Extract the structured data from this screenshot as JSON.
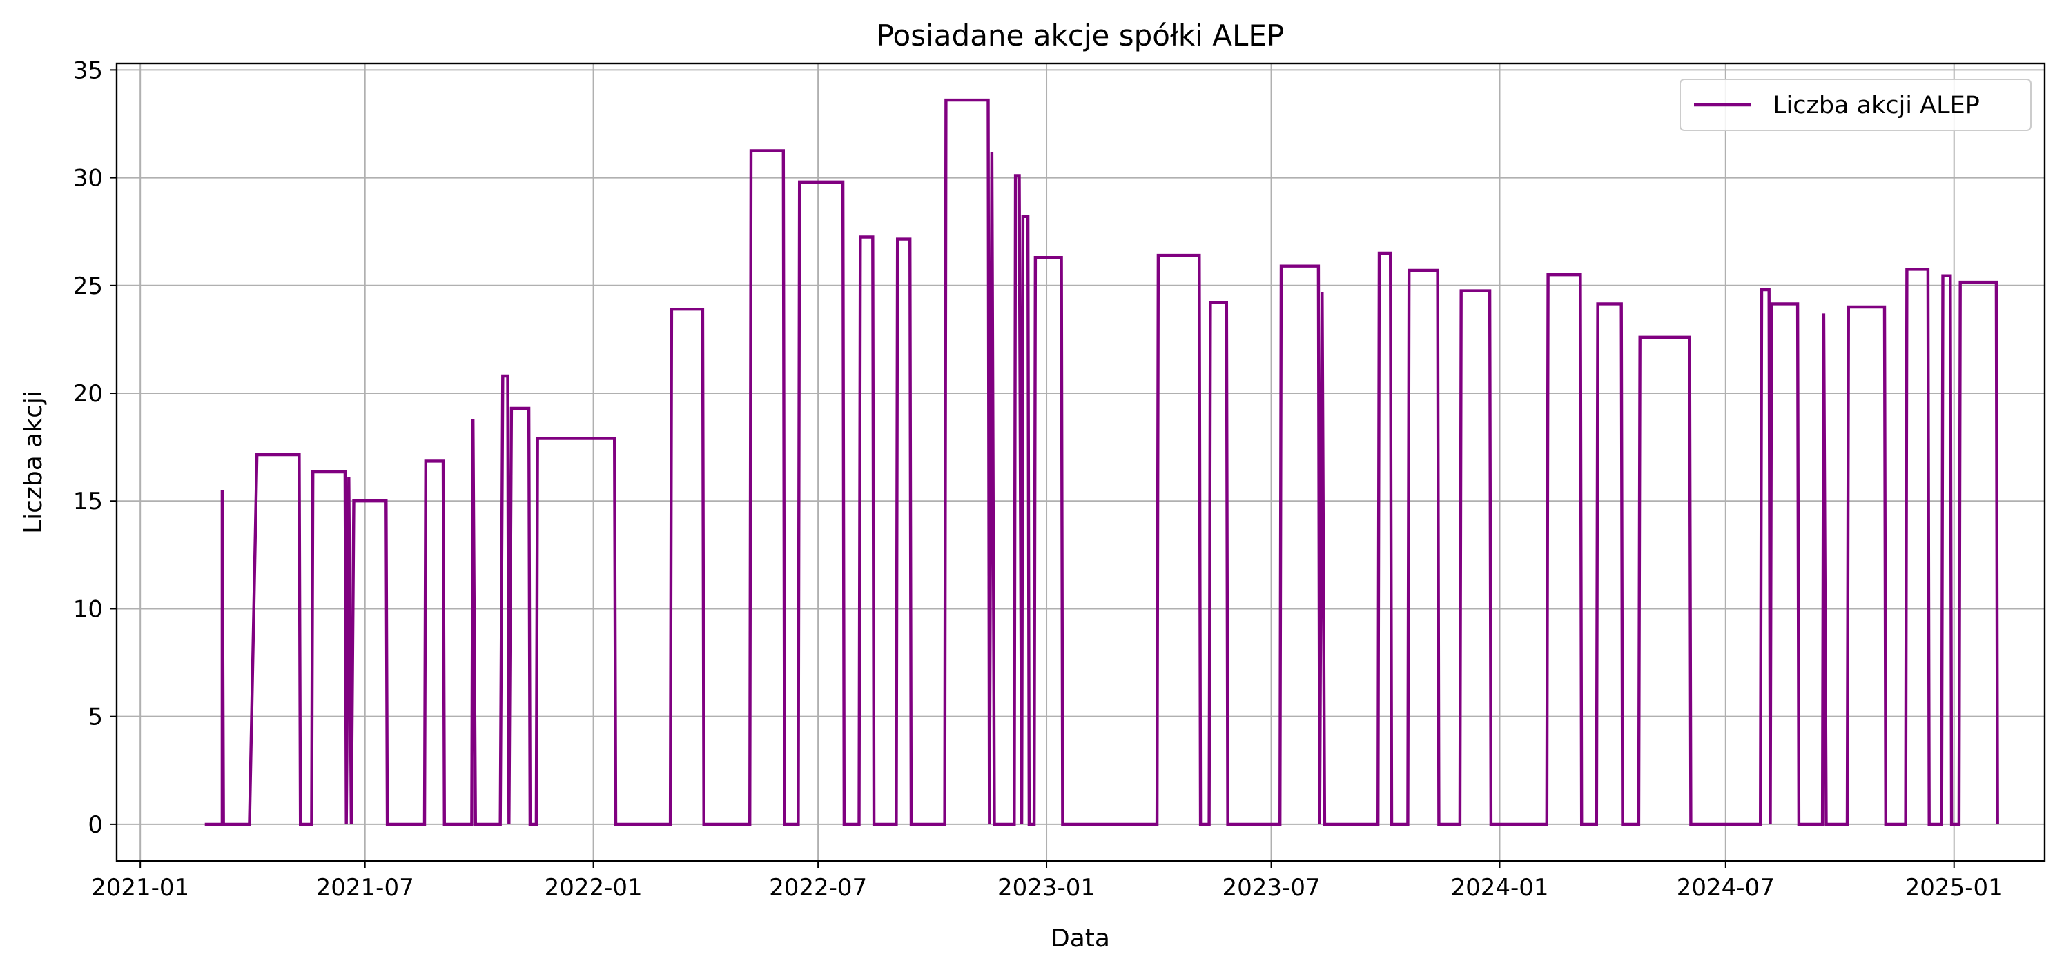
{
  "chart_data": {
    "type": "line",
    "title": "Posiadane akcje spółki ALEP",
    "xlabel": "Data",
    "ylabel": "Liczba akcji",
    "x_tick_labels": [
      "2021-01",
      "2021-07",
      "2022-01",
      "2022-07",
      "2023-01",
      "2023-07",
      "2024-01",
      "2024-07",
      "2025-01"
    ],
    "y_tick_labels": [
      "0",
      "5",
      "10",
      "15",
      "20",
      "25",
      "30",
      "35"
    ],
    "ylim": [
      -1.7,
      35.3
    ],
    "xlim": [
      "2020-12-13",
      "2025-03-15"
    ],
    "grid": true,
    "legend_position": "top-right",
    "line_color": "#800080",
    "series": [
      {
        "name": "Liczba akcji ALEP",
        "points": [
          [
            "2021-02-22",
            0
          ],
          [
            "2021-03-08",
            0
          ],
          [
            "2021-03-08",
            15.5
          ],
          [
            "2021-03-09",
            0
          ],
          [
            "2021-03-30",
            0
          ],
          [
            "2021-04-05",
            17.15
          ],
          [
            "2021-05-09",
            17.15
          ],
          [
            "2021-05-10",
            0
          ],
          [
            "2021-05-19",
            0
          ],
          [
            "2021-05-20",
            16.35
          ],
          [
            "2021-06-15",
            16.35
          ],
          [
            "2021-06-16",
            0
          ],
          [
            "2021-06-18",
            16.1
          ],
          [
            "2021-06-20",
            0
          ],
          [
            "2021-06-22",
            15.0
          ],
          [
            "2021-07-18",
            15.0
          ],
          [
            "2021-07-19",
            0
          ],
          [
            "2021-08-18",
            0
          ],
          [
            "2021-08-19",
            16.85
          ],
          [
            "2021-09-02",
            16.85
          ],
          [
            "2021-09-03",
            0
          ],
          [
            "2021-09-25",
            0
          ],
          [
            "2021-09-26",
            18.8
          ],
          [
            "2021-09-28",
            0
          ],
          [
            "2021-10-18",
            0
          ],
          [
            "2021-10-20",
            20.8
          ],
          [
            "2021-10-24",
            20.8
          ],
          [
            "2021-10-25",
            0
          ],
          [
            "2021-10-27",
            19.3
          ],
          [
            "2021-11-10",
            19.3
          ],
          [
            "2021-11-11",
            0
          ],
          [
            "2021-11-16",
            0
          ],
          [
            "2021-11-17",
            17.9
          ],
          [
            "2022-01-18",
            17.9
          ],
          [
            "2022-01-19",
            0
          ],
          [
            "2022-03-04",
            0
          ],
          [
            "2022-03-05",
            23.9
          ],
          [
            "2022-03-30",
            23.9
          ],
          [
            "2022-03-31",
            0
          ],
          [
            "2022-05-07",
            0
          ],
          [
            "2022-05-08",
            31.25
          ],
          [
            "2022-06-03",
            31.25
          ],
          [
            "2022-06-04",
            0
          ],
          [
            "2022-06-15",
            0
          ],
          [
            "2022-06-16",
            29.8
          ],
          [
            "2022-07-21",
            29.8
          ],
          [
            "2022-07-22",
            0
          ],
          [
            "2022-08-03",
            0
          ],
          [
            "2022-08-04",
            27.25
          ],
          [
            "2022-08-14",
            27.25
          ],
          [
            "2022-08-15",
            0
          ],
          [
            "2022-09-02",
            0
          ],
          [
            "2022-09-03",
            27.15
          ],
          [
            "2022-09-13",
            27.15
          ],
          [
            "2022-09-14",
            0
          ],
          [
            "2022-10-11",
            0
          ],
          [
            "2022-10-12",
            33.6
          ],
          [
            "2022-11-15",
            33.6
          ],
          [
            "2022-11-16",
            0
          ],
          [
            "2022-11-18",
            31.2
          ],
          [
            "2022-11-20",
            0
          ],
          [
            "2022-12-06",
            0
          ],
          [
            "2022-12-07",
            30.1
          ],
          [
            "2022-12-10",
            30.1
          ],
          [
            "2022-12-12",
            0
          ],
          [
            "2022-12-13",
            28.2
          ],
          [
            "2022-12-17",
            28.2
          ],
          [
            "2022-12-18",
            0
          ],
          [
            "2022-12-22",
            0
          ],
          [
            "2022-12-23",
            26.3
          ],
          [
            "2023-01-13",
            26.3
          ],
          [
            "2023-01-14",
            0
          ],
          [
            "2023-03-31",
            0
          ],
          [
            "2023-04-01",
            26.4
          ],
          [
            "2023-05-04",
            26.4
          ],
          [
            "2023-05-05",
            0
          ],
          [
            "2023-05-12",
            0
          ],
          [
            "2023-05-13",
            24.2
          ],
          [
            "2023-05-26",
            24.2
          ],
          [
            "2023-05-27",
            0
          ],
          [
            "2023-07-08",
            0
          ],
          [
            "2023-07-09",
            25.9
          ],
          [
            "2023-08-08",
            25.9
          ],
          [
            "2023-08-09",
            0
          ],
          [
            "2023-08-11",
            24.7
          ],
          [
            "2023-08-13",
            0
          ],
          [
            "2023-09-25",
            0
          ],
          [
            "2023-09-26",
            26.5
          ],
          [
            "2023-10-05",
            26.5
          ],
          [
            "2023-10-06",
            0
          ],
          [
            "2023-10-19",
            0
          ],
          [
            "2023-10-20",
            25.7
          ],
          [
            "2023-11-12",
            25.7
          ],
          [
            "2023-11-13",
            0
          ],
          [
            "2023-11-30",
            0
          ],
          [
            "2023-12-01",
            24.75
          ],
          [
            "2023-12-24",
            24.75
          ],
          [
            "2023-12-25",
            0
          ],
          [
            "2024-02-08",
            0
          ],
          [
            "2024-02-09",
            25.5
          ],
          [
            "2024-03-06",
            25.5
          ],
          [
            "2024-03-07",
            0
          ],
          [
            "2024-03-19",
            0
          ],
          [
            "2024-03-20",
            24.15
          ],
          [
            "2024-04-08",
            24.15
          ],
          [
            "2024-04-09",
            0
          ],
          [
            "2024-04-22",
            0
          ],
          [
            "2024-04-23",
            22.6
          ],
          [
            "2024-06-02",
            22.6
          ],
          [
            "2024-06-03",
            0
          ],
          [
            "2024-07-29",
            0
          ],
          [
            "2024-07-30",
            24.8
          ],
          [
            "2024-08-05",
            24.8
          ],
          [
            "2024-08-06",
            0
          ],
          [
            "2024-08-07",
            24.15
          ],
          [
            "2024-08-28",
            24.15
          ],
          [
            "2024-08-29",
            0
          ],
          [
            "2024-09-17",
            0
          ],
          [
            "2024-09-18",
            23.7
          ],
          [
            "2024-09-20",
            0
          ],
          [
            "2024-10-07",
            0
          ],
          [
            "2024-10-08",
            24.0
          ],
          [
            "2024-11-06",
            24.0
          ],
          [
            "2024-11-07",
            0
          ],
          [
            "2024-11-23",
            0
          ],
          [
            "2024-11-24",
            25.75
          ],
          [
            "2024-12-11",
            25.75
          ],
          [
            "2024-12-12",
            0
          ],
          [
            "2024-12-22",
            0
          ],
          [
            "2024-12-23",
            25.45
          ],
          [
            "2024-12-29",
            25.45
          ],
          [
            "2024-12-30",
            0
          ],
          [
            "2025-01-05",
            0
          ],
          [
            "2025-01-06",
            25.15
          ],
          [
            "2025-02-04",
            25.15
          ],
          [
            "2025-02-05",
            0
          ]
        ]
      }
    ]
  }
}
